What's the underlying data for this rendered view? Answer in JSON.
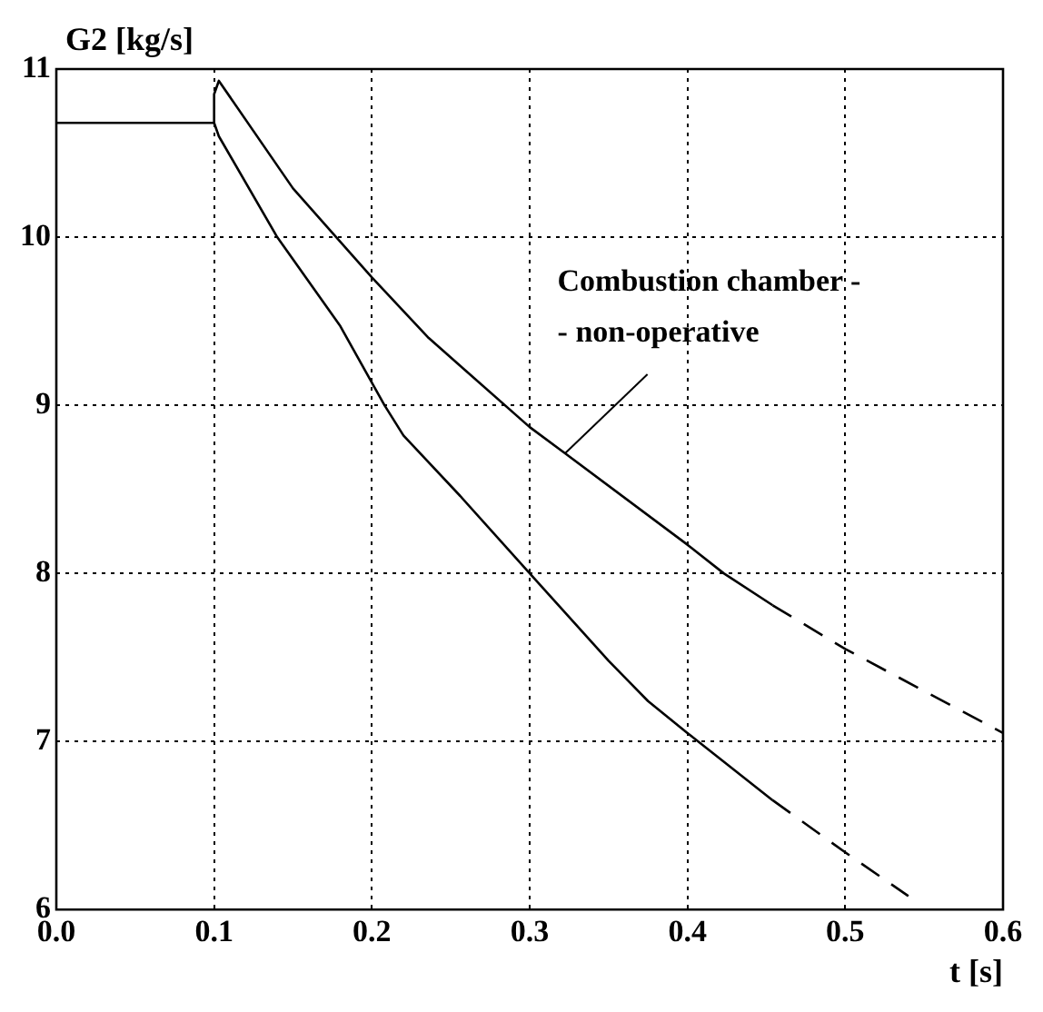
{
  "chart_data": {
    "type": "line",
    "ylabel": "G2 [kg/s]",
    "xlabel": "t [s]",
    "xlim": [
      0,
      0.6
    ],
    "xticks": [
      {
        "value": 0,
        "label": "0.0"
      },
      0.1,
      0.2,
      0.3,
      0.4,
      0.5,
      0.6
    ],
    "ylim": [
      6,
      11
    ],
    "yticks": [
      6,
      7,
      8,
      9,
      10,
      11
    ],
    "grid": true,
    "legend": false,
    "marker": "none",
    "series": [
      {
        "color": "#000000",
        "line_style": "solid",
        "x": [
          0,
          0.1,
          0.1,
          0.103,
          0.15,
          0.2,
          0.236,
          0.3,
          0.323,
          0.4,
          0.423,
          0.454
        ],
        "values": [
          10.68,
          10.68,
          10.85,
          10.93,
          10.29,
          9.76,
          9.4,
          8.87,
          8.71,
          8.17,
          8.0,
          7.81
        ]
      },
      {
        "color": "#000000",
        "line_style": "dashed",
        "x": [
          0.454,
          0.5,
          0.6
        ],
        "values": [
          7.81,
          7.55,
          7.05
        ]
      },
      {
        "color": "#000000",
        "line_style": "solid",
        "x": [
          0.1,
          0.103,
          0.14,
          0.18,
          0.208,
          0.22,
          0.256,
          0.3,
          0.35,
          0.375,
          0.4,
          0.454
        ],
        "values": [
          10.68,
          10.6,
          10.0,
          9.47,
          9.0,
          8.82,
          8.46,
          8.0,
          7.48,
          7.24,
          7.05,
          6.65
        ]
      },
      {
        "color": "#000000",
        "line_style": "dashed",
        "x": [
          0.454,
          0.5,
          0.54
        ],
        "values": [
          6.65,
          6.34,
          6.08
        ]
      }
    ],
    "annotations": [
      {
        "text": "Combustion chamber -\n- non-operative",
        "x": 0.323,
        "y": 8.71
      }
    ]
  }
}
